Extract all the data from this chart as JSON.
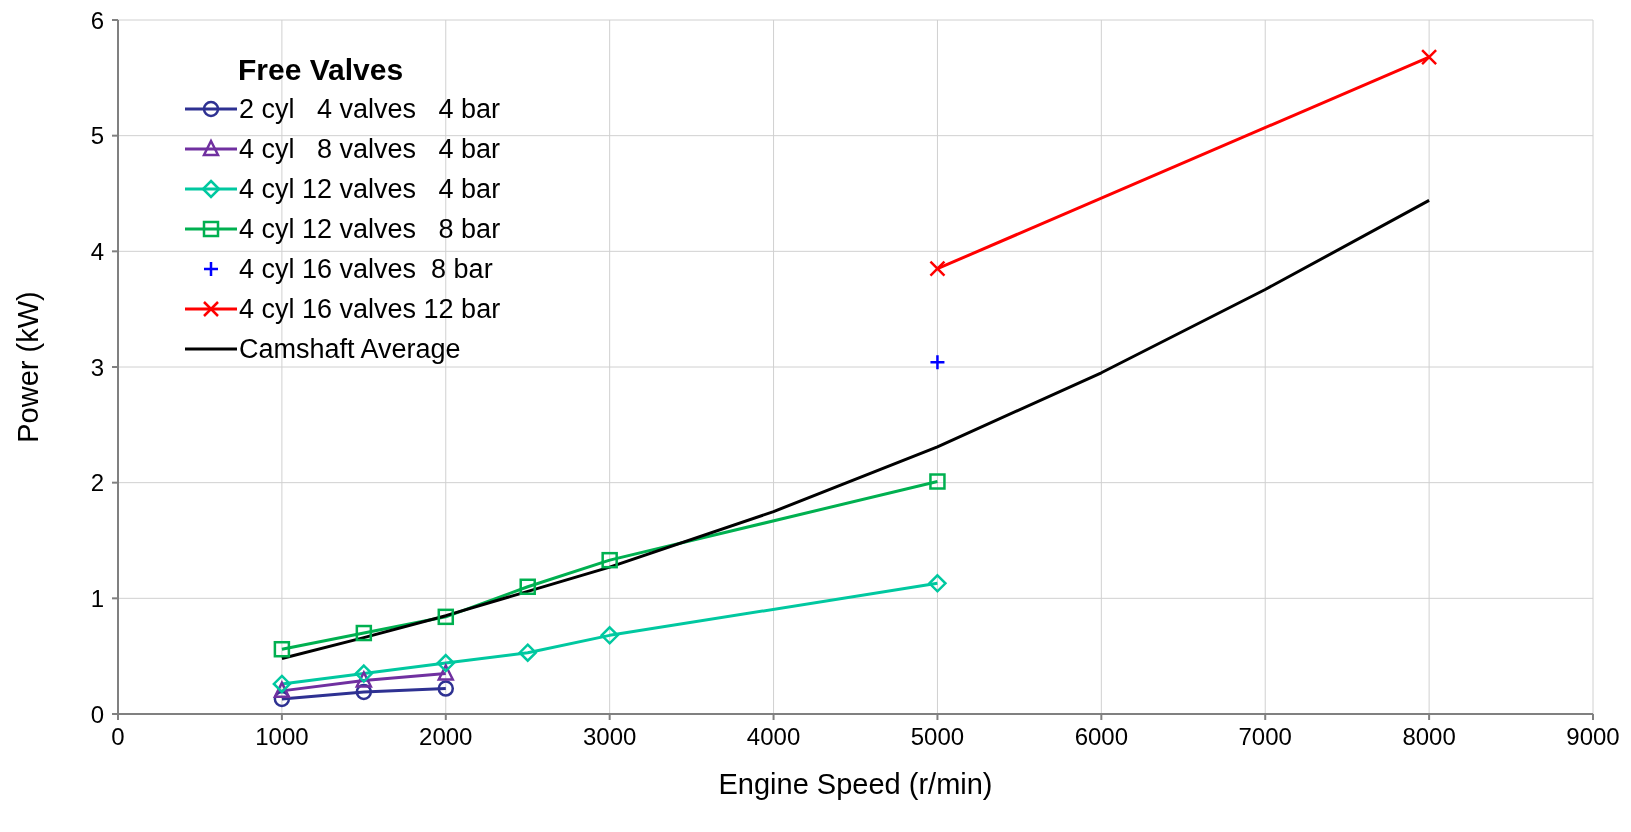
{
  "chart_data": {
    "type": "line",
    "xlabel": "Engine Speed (r/min)",
    "ylabel": "Power (kW)",
    "legend_title": "Free Valves",
    "legend": "top left",
    "grid": true,
    "xlim": [
      0,
      9000
    ],
    "xticks": [
      0,
      1000,
      2000,
      3000,
      4000,
      5000,
      6000,
      7000,
      8000,
      9000
    ],
    "ylim": [
      0,
      6
    ],
    "yticks": [
      0,
      1,
      2,
      3,
      4,
      5,
      6
    ],
    "series": [
      {
        "name": "2 cyl   4 valves   4 bar",
        "color": "#2e3192",
        "marker": "circle",
        "x": [
          1000,
          1500,
          2000
        ],
        "values": [
          0.13,
          0.19,
          0.22
        ]
      },
      {
        "name": "4 cyl   8 valves   4 bar",
        "color": "#7030a0",
        "marker": "triangle",
        "x": [
          1000,
          1500,
          2000
        ],
        "values": [
          0.2,
          0.29,
          0.35
        ]
      },
      {
        "name": "4 cyl 12 valves   4 bar",
        "color": "#00c8a0",
        "marker": "diamond",
        "x": [
          1000,
          1500,
          2000,
          2500,
          3000,
          5000
        ],
        "values": [
          0.26,
          0.35,
          0.44,
          0.53,
          0.68,
          1.13
        ]
      },
      {
        "name": "4 cyl 12 valves   8 bar",
        "color": "#00b050",
        "marker": "square",
        "x": [
          1000,
          1500,
          2000,
          2500,
          3000,
          5000
        ],
        "values": [
          0.56,
          0.7,
          0.84,
          1.1,
          1.33,
          2.01
        ]
      },
      {
        "name": "4 cyl 16 valves  8 bar",
        "color": "#0000ff",
        "type": "scatter",
        "marker": "cross",
        "x": [
          5000
        ],
        "values": [
          3.04
        ]
      },
      {
        "name": "4 cyl 16 valves 12 bar",
        "color": "#ff0000",
        "marker": "x",
        "x": [
          5000,
          8000
        ],
        "values": [
          3.85,
          5.68
        ]
      },
      {
        "name": "Camshaft Average",
        "color": "#000000",
        "marker": "none",
        "x": [
          1000,
          1500,
          2000,
          3000,
          4000,
          5000,
          6000,
          7000,
          8000
        ],
        "values": [
          0.48,
          0.66,
          0.85,
          1.27,
          1.75,
          2.31,
          2.95,
          3.67,
          4.44
        ]
      }
    ]
  }
}
